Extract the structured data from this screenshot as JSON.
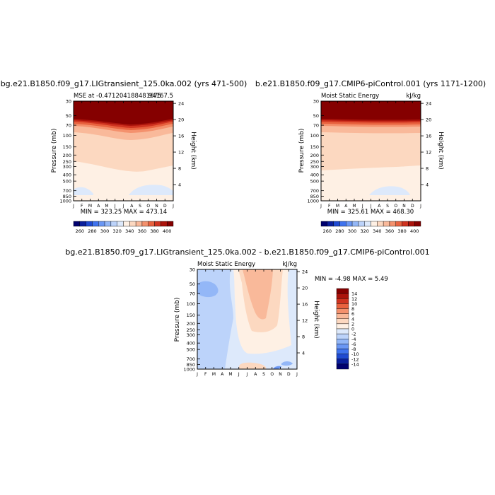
{
  "palette": [
    "#00006e",
    "#0a1f9c",
    "#1f4ad1",
    "#3f73ee",
    "#6a97f4",
    "#93b7f7",
    "#bcd3fa",
    "#dde9fb",
    "#fef0e4",
    "#fcd8c0",
    "#f9b99a",
    "#f4916d",
    "#e8623f",
    "#cf3320",
    "#ab130b",
    "#850000"
  ],
  "chart_data": [
    {
      "type": "heatmap",
      "title": "bg.e21.B1850.f09_g17.LIGtransient_125.0ka.002 (yrs 471-500)",
      "left_label": "MSE at -0.471204188481675",
      "right_label": "94167.5",
      "minmax": "MIN = 323.25 MAX = 473.14",
      "xlabels": [
        "J",
        "F",
        "M",
        "A",
        "M",
        "J",
        "J",
        "A",
        "S",
        "O",
        "N",
        "D",
        "J"
      ],
      "ylabel": "Pressure (mb)",
      "y2label": "Height (km)",
      "pressure_ticks": [
        "30",
        "50",
        "70",
        "100",
        "150",
        "200",
        "250",
        "300",
        "400",
        "500",
        "700",
        "850",
        "1000"
      ],
      "height_ticks": [
        "24",
        "20",
        "16",
        "12",
        "8",
        "4"
      ],
      "colorbar_labels": [
        "260",
        "280",
        "300",
        "320",
        "340",
        "360",
        "380",
        "400"
      ]
    },
    {
      "type": "heatmap",
      "title": "b.e21.B1850.f09_g17.CMIP6-piControl.001 (yrs 1171-1200)",
      "left_label": "Moist Static Energy",
      "right_label": "kJ/kg",
      "minmax": "MIN = 325.61 MAX = 468.30",
      "xlabels": [
        "J",
        "F",
        "M",
        "A",
        "M",
        "J",
        "J",
        "A",
        "S",
        "O",
        "N",
        "D",
        "J"
      ],
      "ylabel": "Pressure (mb)",
      "y2label": "Height (km)",
      "pressure_ticks": [
        "30",
        "50",
        "70",
        "100",
        "150",
        "200",
        "250",
        "300",
        "400",
        "500",
        "700",
        "850",
        "1000"
      ],
      "height_ticks": [
        "24",
        "20",
        "16",
        "12",
        "8",
        "4"
      ],
      "colorbar_labels": [
        "260",
        "280",
        "300",
        "320",
        "340",
        "360",
        "380",
        "400"
      ]
    },
    {
      "type": "heatmap",
      "title": "bg.e21.B1850.f09_g17.LIGtransient_125.0ka.002 - b.e21.B1850.f09_g17.CMIP6-piControl.001",
      "left_label": "Moist Static Energy",
      "right_label": "kJ/kg",
      "minmax": "MIN = -4.98 MAX =  5.49",
      "xlabels": [
        "J",
        "F",
        "M",
        "A",
        "M",
        "J",
        "J",
        "A",
        "S",
        "O",
        "N",
        "D",
        "J"
      ],
      "ylabel": "Pressure (mb)",
      "y2label": "Height (km)",
      "pressure_ticks": [
        "30",
        "50",
        "70",
        "100",
        "150",
        "200",
        "250",
        "300",
        "400",
        "500",
        "700",
        "850",
        "1000"
      ],
      "height_ticks": [
        "24",
        "20",
        "16",
        "12",
        "8",
        "4"
      ],
      "colorbar_labels": [
        "14",
        "12",
        "10",
        "8",
        "6",
        "4",
        "2",
        "0",
        "-2",
        "-4",
        "-6",
        "-8",
        "-10",
        "-12",
        "-14"
      ]
    }
  ]
}
